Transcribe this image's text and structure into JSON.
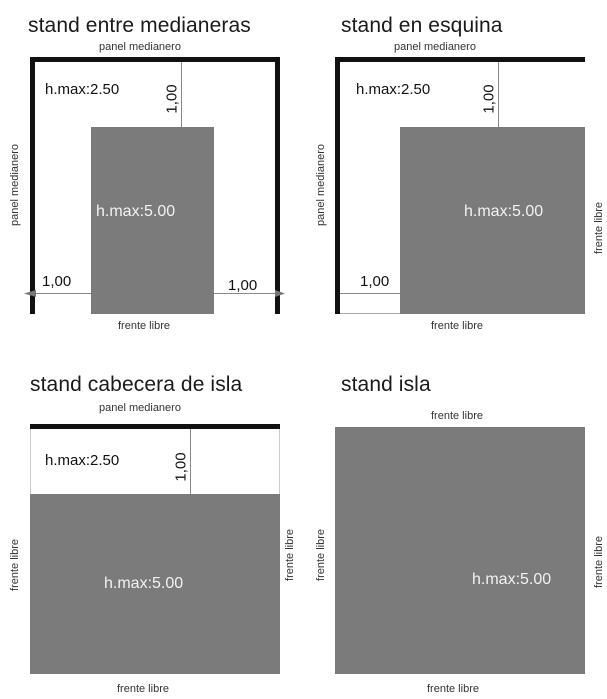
{
  "diagrams": {
    "entre": {
      "title": "stand entre medianeras",
      "top_label": "panel medianero",
      "left_label": "panel medianero",
      "h_low": "h.max:2.50",
      "setback_top": "1,00",
      "h_high": "h.max:5.00",
      "setback_left": "1,00",
      "setback_right": "1,00",
      "bottom_label": "frente libre"
    },
    "esquina": {
      "title": "stand en esquina",
      "top_label": "panel medianero",
      "left_label": "panel medianero",
      "right_label": "frente libre",
      "h_low": "h.max:2.50",
      "setback_top": "1,00",
      "h_high": "h.max:5.00",
      "setback_left": "1,00",
      "bottom_label": "frente libre"
    },
    "cabecera": {
      "title": "stand cabecera de isla",
      "top_label": "panel medianero",
      "left_label": "frente libre",
      "right_label": "frente libre",
      "h_low": "h.max:2.50",
      "setback_top": "1,00",
      "h_high": "h.max:5.00",
      "bottom_label": "frente libre"
    },
    "isla": {
      "title": "stand isla",
      "top_label": "frente libre",
      "left_label": "frente libre",
      "right_label": "frente libre",
      "h_high": "h.max:5.00",
      "bottom_label": "frente libre"
    }
  },
  "colors": {
    "tall_zone": "#7b7b7b",
    "wall": "#111111",
    "background": "#ffffff"
  }
}
